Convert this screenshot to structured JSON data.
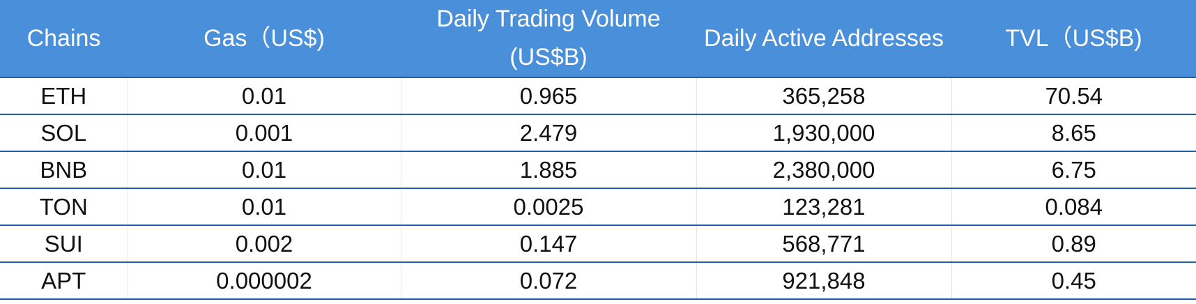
{
  "chart_data": {
    "type": "table",
    "columns": [
      "Chains",
      "Gas（US$)",
      "Daily Trading Volume (US$B)",
      "Daily Active Addresses",
      "TVL（US$B)"
    ],
    "rows": [
      [
        "ETH",
        "0.01",
        "0.965",
        "365,258",
        "70.54"
      ],
      [
        "SOL",
        "0.001",
        "2.479",
        "1,930,000",
        "8.65"
      ],
      [
        "BNB",
        "0.01",
        "1.885",
        "2,380,000",
        "6.75"
      ],
      [
        "TON",
        "0.01",
        "0.0025",
        "123,281",
        "0.084"
      ],
      [
        "SUI",
        "0.002",
        "0.147",
        "568,771",
        "0.89"
      ],
      [
        "APT",
        "0.000002",
        "0.072",
        "921,848",
        "0.45"
      ]
    ]
  },
  "colors": {
    "header_bg": "#4a8fd9",
    "header_text": "#ffffff",
    "row_divider": "#1f5ea8",
    "cell_text": "#111111"
  }
}
